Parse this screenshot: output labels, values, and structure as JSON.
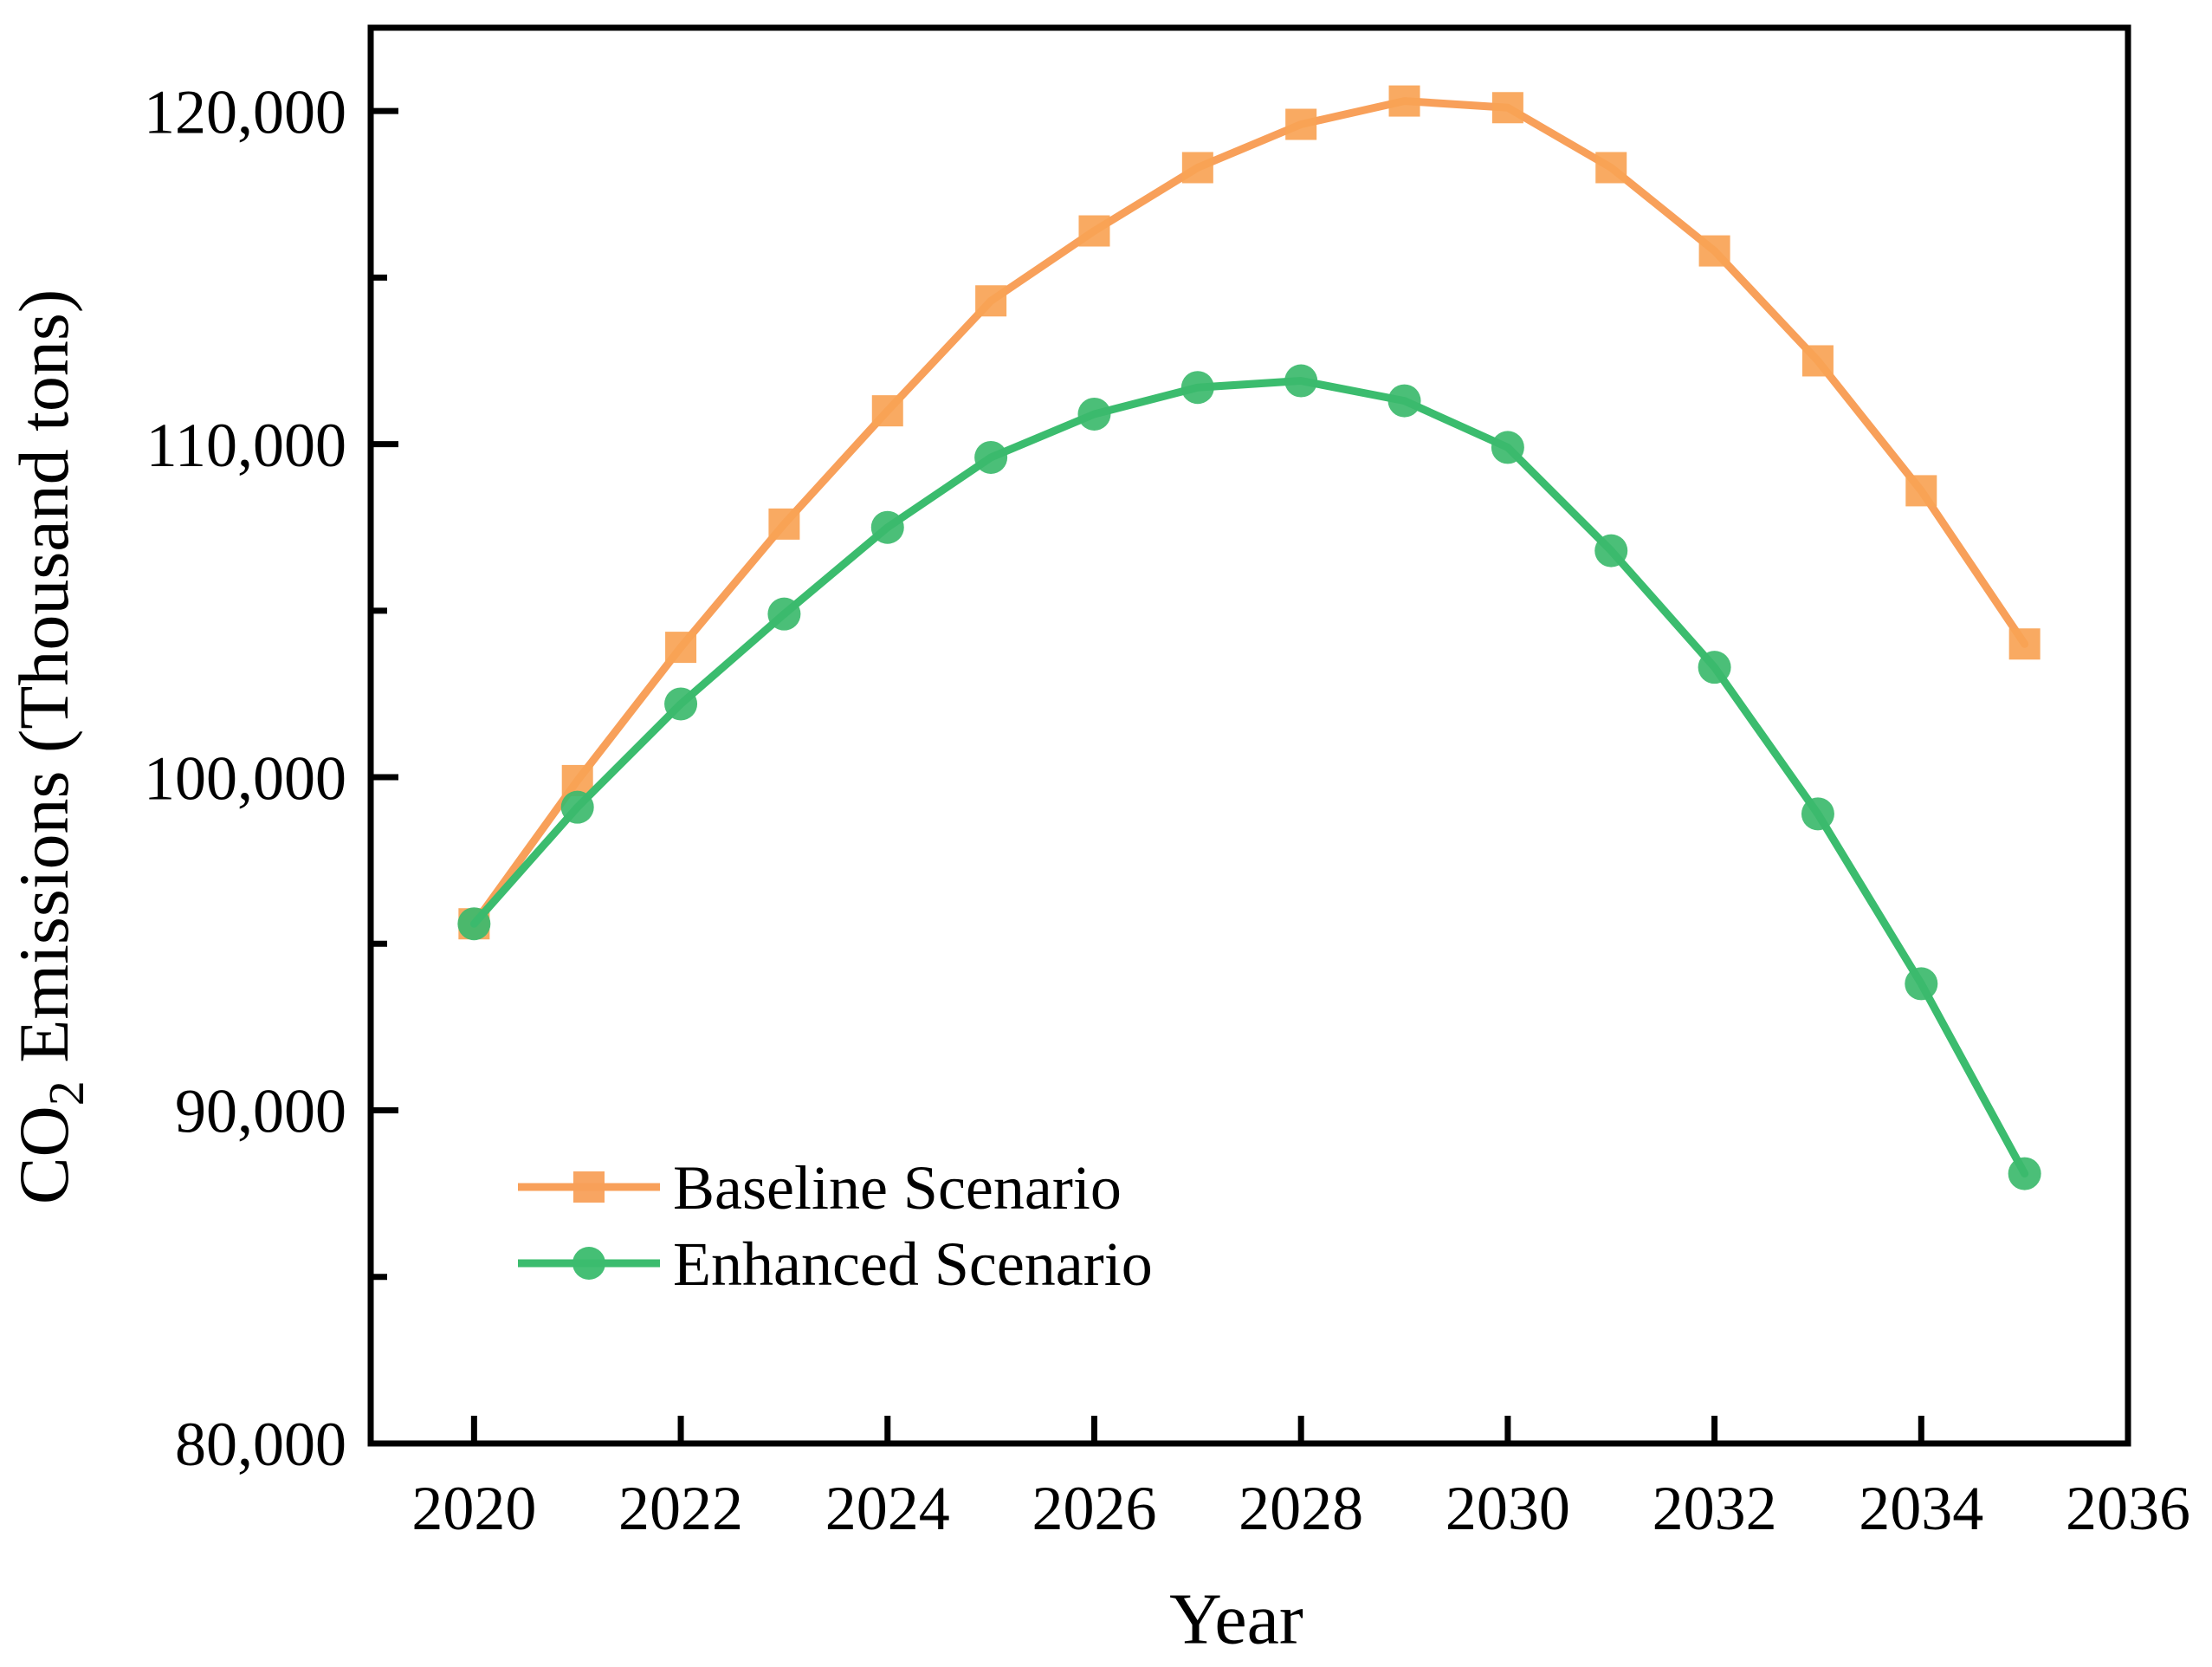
{
  "figure": {
    "background": "#ffffff",
    "axis_color": "#000000"
  },
  "axes": {
    "x": {
      "title": "Year",
      "min": 2019,
      "max": 2036,
      "ticks": [
        {
          "value": 2020,
          "label": "2020"
        },
        {
          "value": 2022,
          "label": "2022"
        },
        {
          "value": 2024,
          "label": "2024"
        },
        {
          "value": 2026,
          "label": "2026"
        },
        {
          "value": 2028,
          "label": "2028"
        },
        {
          "value": 2030,
          "label": "2030"
        },
        {
          "value": 2032,
          "label": "2032"
        },
        {
          "value": 2034,
          "label": "2034"
        },
        {
          "value": 2036,
          "label": "2036"
        }
      ]
    },
    "y": {
      "title_main": "CO",
      "title_sub": "2",
      "title_rest": " Emissions (Thousand tons)",
      "min": 80000,
      "max": 122500,
      "major_ticks": [
        {
          "value": 80000,
          "label": "80,000"
        },
        {
          "value": 90000,
          "label": "90,000"
        },
        {
          "value": 100000,
          "label": "100,000"
        },
        {
          "value": 110000,
          "label": "110,000"
        },
        {
          "value": 120000,
          "label": "120,000"
        }
      ],
      "minor_ticks": [
        85000,
        95000,
        105000,
        115000
      ]
    }
  },
  "legend": {
    "items": [
      {
        "label": "Baseline Scenario",
        "marker": "square",
        "color": "#F8A05A"
      },
      {
        "label": "Enhanced Scenario",
        "marker": "circle",
        "color": "#3BBC6E"
      }
    ]
  },
  "chart_data": {
    "type": "line",
    "title": "",
    "xlabel": "Year",
    "ylabel": "CO2 Emissions (Thousand tons)",
    "x": [
      2020,
      2021,
      2022,
      2023,
      2024,
      2025,
      2026,
      2027,
      2028,
      2029,
      2030,
      2031,
      2032,
      2033,
      2034,
      2035
    ],
    "series": [
      {
        "name": "Baseline Scenario",
        "marker": "square",
        "color": "#F8A05A",
        "marker_color": "#F9A355",
        "values": [
          95600,
          99900,
          103900,
          107600,
          111000,
          114300,
          116400,
          118300,
          119600,
          120300,
          120100,
          118300,
          115800,
          112500,
          108600,
          104000
        ]
      },
      {
        "name": "Enhanced Scenario",
        "marker": "circle",
        "color": "#3BBC6E",
        "marker_color": "#3CBA6D",
        "values": [
          95600,
          99100,
          102200,
          104900,
          107500,
          109600,
          110900,
          111700,
          111900,
          111300,
          109900,
          106800,
          103300,
          98900,
          93800,
          88100
        ]
      }
    ],
    "xlim": [
      2019,
      2036
    ],
    "ylim": [
      80000,
      122500
    ],
    "grid": false,
    "legend_position": "lower-left"
  }
}
